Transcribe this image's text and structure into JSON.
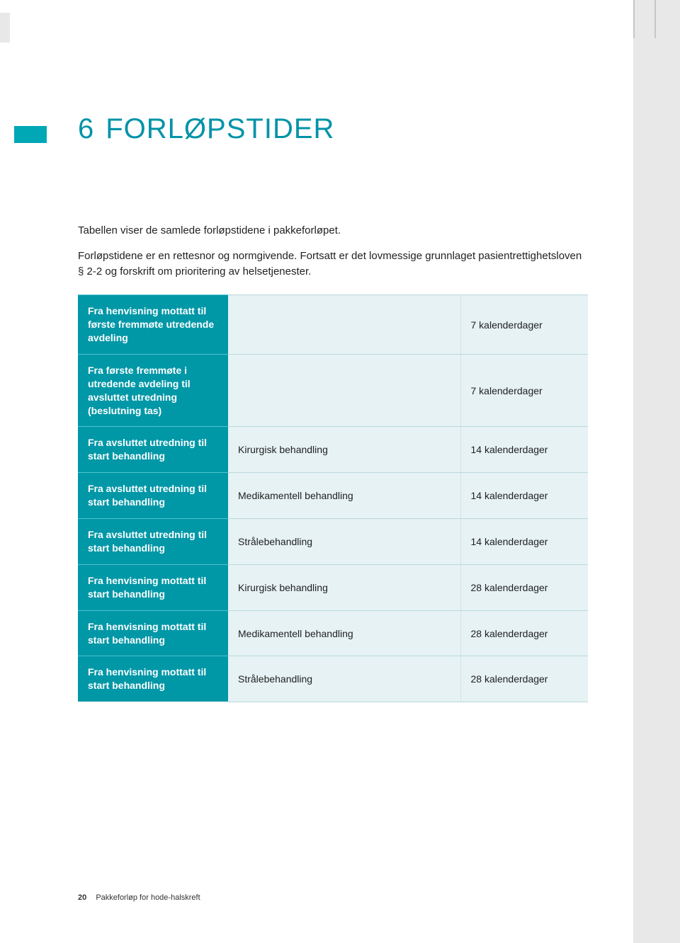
{
  "chapter": {
    "number": "6",
    "title": "FORLØPSTIDER"
  },
  "intro": {
    "p1": "Tabellen viser de samlede forløpstidene i pakkeforløpet.",
    "p2": "Forløpstidene er en rettesnor og normgivende. Fortsatt er det lovmessige grunnlaget pasientrettighetsloven § 2-2 og forskrift om prioritering av helsetjenester."
  },
  "table": {
    "rows": [
      {
        "label": "Fra henvisning mottatt til første fremmøte utredende avdeling",
        "mid": "",
        "val": "7 kalenderdager"
      },
      {
        "label": "Fra første fremmøte i utredende avdeling til avsluttet utredning (beslutning tas)",
        "mid": "",
        "val": "7 kalenderdager"
      },
      {
        "label": "Fra avsluttet utredning til start behandling",
        "mid": "Kirurgisk behandling",
        "val": "14 kalenderdager"
      },
      {
        "label": "Fra avsluttet utredning til start behandling",
        "mid": "Medikamentell behandling",
        "val": "14 kalenderdager"
      },
      {
        "label": "Fra avsluttet utredning til start behandling",
        "mid": "Strålebehandling",
        "val": "14 kalenderdager"
      },
      {
        "label": "Fra henvisning mottatt til start behandling",
        "mid": "Kirurgisk behandling",
        "val": "28 kalenderdager"
      },
      {
        "label": "Fra henvisning mottatt til start behandling",
        "mid": "Medikamentell behandling",
        "val": "28 kalenderdager"
      },
      {
        "label": "Fra henvisning mottatt til start behandling",
        "mid": "Strålebehandling",
        "val": "28 kalenderdager"
      }
    ]
  },
  "footer": {
    "page": "20",
    "title": "Pakkeforløp for hode-halskreft"
  },
  "colors": {
    "accent": "#0097a7",
    "accent_light": "#e6f2f4",
    "heading": "#0093a8"
  }
}
